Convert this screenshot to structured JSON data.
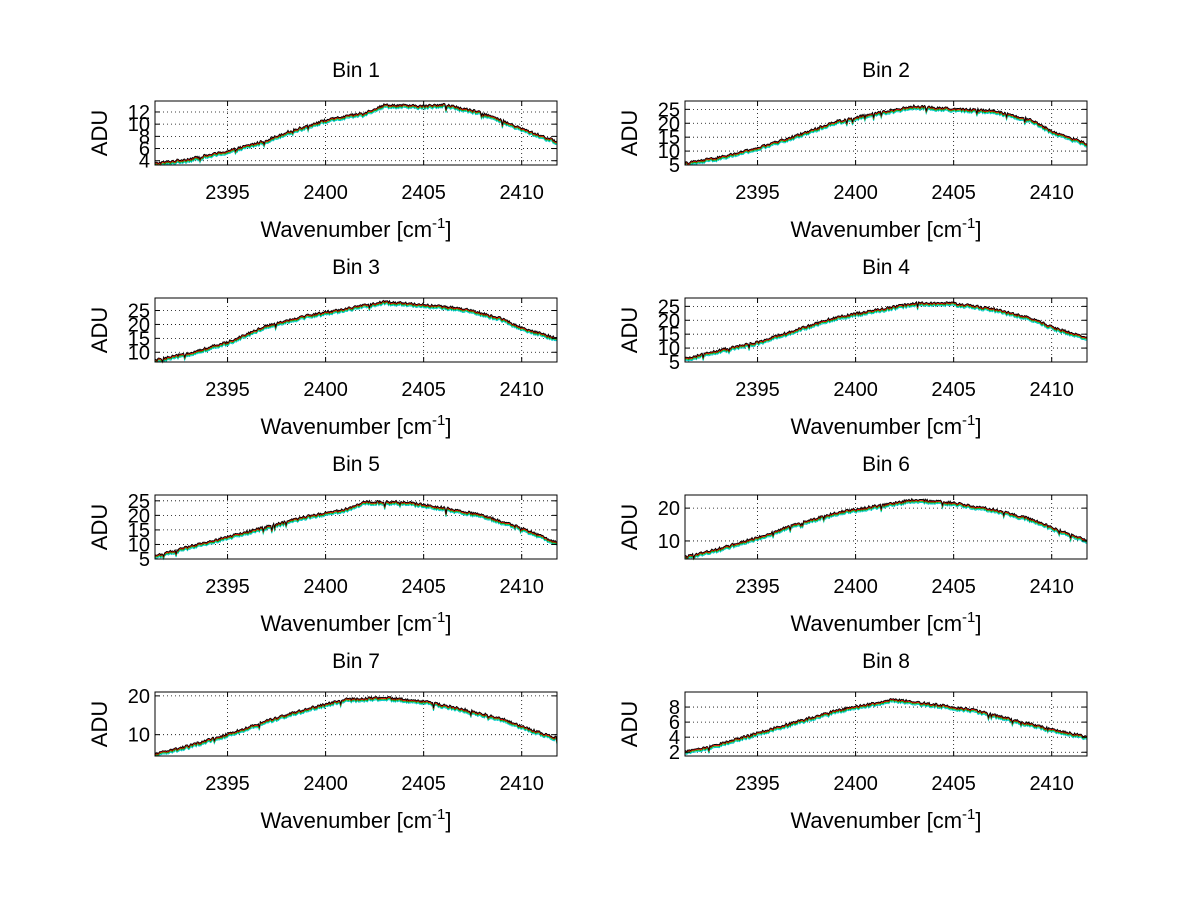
{
  "figure": {
    "background": "#ffffff"
  },
  "series_colors": [
    "#00cccc",
    "#00aa00",
    "#ff0000",
    "#000000"
  ],
  "chart_data": [
    {
      "type": "line",
      "title": "Bin 1",
      "xlabel": "Wavenumber [cm",
      "xlabel_sup": "-1",
      "xlabel_end": "]",
      "ylabel": "ADU",
      "xlim": [
        2391.3,
        2411.8
      ],
      "ylim": [
        3.3,
        13.8
      ],
      "xticks": [
        2395,
        2400,
        2405,
        2410
      ],
      "yticks": [
        4,
        6,
        8,
        10,
        12
      ],
      "grid": true,
      "x": [
        2391.3,
        2393,
        2395,
        2397,
        2398,
        2400,
        2402,
        2403,
        2405,
        2406,
        2408,
        2410,
        2411.8
      ],
      "y": [
        3.5,
        4.2,
        5.5,
        7.3,
        8.6,
        10.6,
        11.8,
        13.1,
        12.9,
        13.2,
        11.8,
        9.2,
        7.1
      ]
    },
    {
      "type": "line",
      "title": "Bin 2",
      "xlabel": "Wavenumber [cm",
      "xlabel_sup": "-1",
      "xlabel_end": "]",
      "ylabel": "ADU",
      "xlim": [
        2391.3,
        2411.8
      ],
      "ylim": [
        5,
        28
      ],
      "xticks": [
        2395,
        2400,
        2405,
        2410
      ],
      "yticks": [
        5,
        10,
        15,
        20,
        25
      ],
      "grid": true,
      "x": [
        2391.3,
        2393,
        2395,
        2397,
        2399,
        2401,
        2403,
        2405,
        2407,
        2409,
        2410,
        2411.8
      ],
      "y": [
        5.5,
        7.5,
        11,
        15.5,
        20.5,
        23.5,
        26,
        25,
        24.5,
        21,
        17,
        12.5
      ]
    },
    {
      "type": "line",
      "title": "Bin 3",
      "xlabel": "Wavenumber [cm",
      "xlabel_sup": "-1",
      "xlabel_end": "]",
      "ylabel": "ADU",
      "xlim": [
        2391.3,
        2411.8
      ],
      "ylim": [
        6.5,
        29.5
      ],
      "xticks": [
        2395,
        2400,
        2405,
        2410
      ],
      "yticks": [
        10,
        15,
        20,
        25
      ],
      "grid": true,
      "x": [
        2391.3,
        2393,
        2395,
        2397,
        2399,
        2401,
        2403,
        2405,
        2407,
        2409,
        2410,
        2411.8
      ],
      "y": [
        7,
        9.5,
        13.5,
        19.5,
        23,
        25.5,
        28,
        27,
        25.5,
        22,
        18.5,
        15
      ]
    },
    {
      "type": "line",
      "title": "Bin 4",
      "xlabel": "Wavenumber [cm",
      "xlabel_sup": "-1",
      "xlabel_end": "]",
      "ylabel": "ADU",
      "xlim": [
        2391.3,
        2411.8
      ],
      "ylim": [
        5,
        28
      ],
      "xticks": [
        2395,
        2400,
        2405,
        2410
      ],
      "yticks": [
        5,
        10,
        15,
        20,
        25
      ],
      "grid": true,
      "x": [
        2391.3,
        2393,
        2395,
        2397,
        2399,
        2401,
        2403,
        2405,
        2407,
        2409,
        2410,
        2411.8
      ],
      "y": [
        6,
        9,
        12,
        16.5,
        21,
        23.5,
        26,
        26,
        24,
        20.5,
        17.5,
        13.5
      ]
    },
    {
      "type": "line",
      "title": "Bin 5",
      "xlabel": "Wavenumber [cm",
      "xlabel_sup": "-1",
      "xlabel_end": "]",
      "ylabel": "ADU",
      "xlim": [
        2391.3,
        2411.8
      ],
      "ylim": [
        5,
        27
      ],
      "xticks": [
        2395,
        2400,
        2405,
        2410
      ],
      "yticks": [
        5,
        10,
        15,
        20,
        25
      ],
      "grid": true,
      "x": [
        2391.3,
        2393,
        2395,
        2397,
        2399,
        2401,
        2402,
        2404,
        2406,
        2408,
        2410,
        2411.8
      ],
      "y": [
        6,
        9,
        12.5,
        16,
        19.5,
        22,
        24.5,
        24.5,
        22.5,
        20,
        15.5,
        10.5
      ]
    },
    {
      "type": "line",
      "title": "Bin 6",
      "xlabel": "Wavenumber [cm",
      "xlabel_sup": "-1",
      "xlabel_end": "]",
      "ylabel": "ADU",
      "xlim": [
        2391.3,
        2411.8
      ],
      "ylim": [
        4.5,
        24
      ],
      "xticks": [
        2395,
        2400,
        2405,
        2410
      ],
      "yticks": [
        10,
        20
      ],
      "grid": true,
      "x": [
        2391.3,
        2393,
        2395,
        2397,
        2399,
        2401,
        2403,
        2405,
        2407,
        2409,
        2410,
        2411.8
      ],
      "y": [
        5,
        7.5,
        11,
        15,
        18.5,
        20.5,
        22.5,
        21.5,
        19.5,
        16.5,
        14,
        10
      ]
    },
    {
      "type": "line",
      "title": "Bin 7",
      "xlabel": "Wavenumber [cm",
      "xlabel_sup": "-1",
      "xlabel_end": "]",
      "ylabel": "ADU",
      "xlim": [
        2391.3,
        2411.8
      ],
      "ylim": [
        4.5,
        21
      ],
      "xticks": [
        2395,
        2400,
        2405,
        2410
      ],
      "yticks": [
        10,
        20
      ],
      "grid": true,
      "x": [
        2391.3,
        2393,
        2395,
        2397,
        2399,
        2401,
        2403,
        2405,
        2407,
        2409,
        2410,
        2411.8
      ],
      "y": [
        5,
        7,
        10,
        13.5,
        16.5,
        19,
        19.5,
        18.5,
        16.5,
        14,
        12,
        9
      ]
    },
    {
      "type": "line",
      "title": "Bin 8",
      "xlabel": "Wavenumber [cm",
      "xlabel_sup": "-1",
      "xlabel_end": "]",
      "ylabel": "ADU",
      "xlim": [
        2391.3,
        2411.8
      ],
      "ylim": [
        1.5,
        10
      ],
      "xticks": [
        2395,
        2400,
        2405,
        2410
      ],
      "yticks": [
        2,
        4,
        6,
        8
      ],
      "grid": true,
      "x": [
        2391.3,
        2393,
        2395,
        2397,
        2399,
        2401,
        2402,
        2404,
        2406,
        2408,
        2410,
        2411.8
      ],
      "y": [
        2,
        3,
        4.5,
        6,
        7.5,
        8.5,
        9,
        8.3,
        7.6,
        6.3,
        5,
        4
      ]
    }
  ]
}
